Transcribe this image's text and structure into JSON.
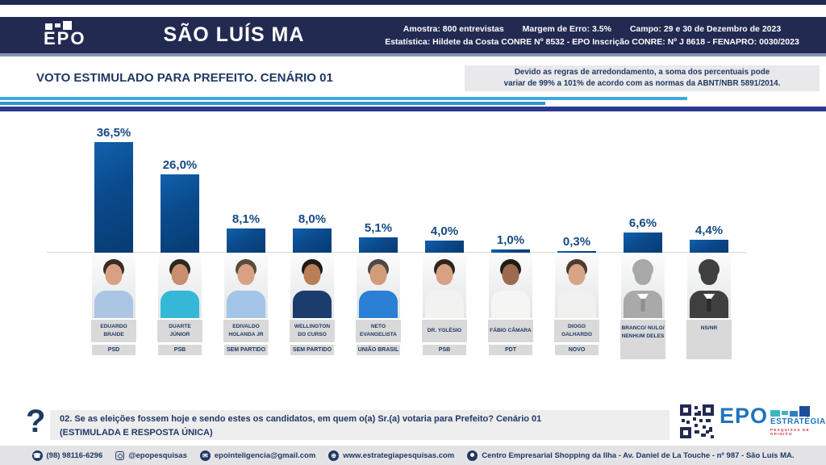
{
  "header": {
    "logo_text": "EPO",
    "title": "SÃO LUÍS MA",
    "info": {
      "amostra": "Amostra: 800 entrevistas",
      "margem": "Margem de Erro: 3.5%",
      "campo": "Campo: 29 e 30 de Dezembro de 2023",
      "line2": "Estatística: Hildete da Costa CONRE Nº 8532  - EPO Inscrição CONRE: Nº J 8618 - FENAPRO: 0030/2023"
    }
  },
  "section": {
    "title": "VOTO ESTIMULADO PARA PREFEITO. CENÁRIO 01",
    "note_line1": "Devido as regras de arredondamento, a soma dos percentuais pode",
    "note_line2": "variar de 99% a 101% de acordo com as normas da ABNT/NBR 5891/2014."
  },
  "chart_data": {
    "type": "bar",
    "title": "VOTO ESTIMULADO PARA PREFEITO. CENÁRIO 01",
    "unit": "%",
    "ylim": [
      0,
      40
    ],
    "grid": false,
    "legend": "none",
    "categories": [
      "EDUARDO BRAIDE",
      "DUARTE JÚNIOR",
      "EDIVALDO HOLANDA JR",
      "WELLINGTON DO CURSO",
      "NETO EVANGELISTA",
      "DR. YGLÉSIO",
      "FÁBIO CÂMARA",
      "DIOGO GALHARDO",
      "BRANCO/ NULO/ NENHUM DELES",
      "NS/NR"
    ],
    "parties": [
      "PSD",
      "PSB",
      "SEM PARTIDO",
      "SEM PARTIDO",
      "UNIÃO BRASIL",
      "PSB",
      "PDT",
      "NOVO",
      "",
      ""
    ],
    "values": [
      36.5,
      26.0,
      8.1,
      8.0,
      5.1,
      4.0,
      1.0,
      0.3,
      6.6,
      4.4
    ],
    "labels": [
      "36,5%",
      "26,0%",
      "8,1%",
      "8,0%",
      "5,1%",
      "4,0%",
      "1,0%",
      "0,3%",
      "6,6%",
      "4,4%"
    ],
    "bar_color": "#0a4a8c"
  },
  "candidates": [
    {
      "name": "EDUARDO BRAIDE",
      "party": "PSD",
      "value": 36.5,
      "pct_label": "36,5%",
      "photo": {
        "hair": "#3a2c24",
        "skin": "#d9a183",
        "shirt": "#aac6e2",
        "silhouette": false
      }
    },
    {
      "name": "DUARTE JÚNIOR",
      "party": "PSB",
      "value": 26.0,
      "pct_label": "26,0%",
      "photo": {
        "hair": "#2e2620",
        "skin": "#c98e6e",
        "shirt": "#35b8d8",
        "silhouette": false
      }
    },
    {
      "name": "EDIVALDO HOLANDA JR",
      "party": "SEM PARTIDO",
      "value": 8.1,
      "pct_label": "8,1%",
      "photo": {
        "hair": "#5a4a3a",
        "skin": "#d8a184",
        "shirt": "#a3c6e8",
        "silhouette": false
      }
    },
    {
      "name": "WELLINGTON DO CURSO",
      "party": "SEM PARTIDO",
      "value": 8.0,
      "pct_label": "8,0%",
      "photo": {
        "hair": "#1f1a16",
        "skin": "#b97f55",
        "shirt": "#1d3c6e",
        "silhouette": false
      }
    },
    {
      "name": "NETO EVANGELISTA",
      "party": "UNIÃO BRASIL",
      "value": 5.1,
      "pct_label": "5,1%",
      "photo": {
        "hair": "#4a4a4a",
        "skin": "#d29b79",
        "shirt": "#2b7fd4",
        "silhouette": false
      }
    },
    {
      "name": "DR. YGLÉSIO",
      "party": "PSB",
      "value": 4.0,
      "pct_label": "4,0%",
      "photo": {
        "hair": "#2c241e",
        "skin": "#d8a183",
        "shirt": "#f2f2f0",
        "silhouette": false
      }
    },
    {
      "name": "FÁBIO CÂMARA",
      "party": "PDT",
      "value": 1.0,
      "pct_label": "1,0%",
      "photo": {
        "hair": "#1f1b18",
        "skin": "#9c6b4e",
        "shirt": "#f5f5f3",
        "silhouette": false
      }
    },
    {
      "name": "DIOGO GALHARDO",
      "party": "NOVO",
      "value": 0.3,
      "pct_label": "0,3%",
      "photo": {
        "hair": "#4e3b2a",
        "skin": "#d8a488",
        "shirt": "#f0f0ee",
        "tie": "#2b5fa8",
        "silhouette": false
      }
    },
    {
      "name": "BRANCO/ NULO/ NENHUM DELES",
      "party": "",
      "value": 6.6,
      "pct_label": "6,6%",
      "photo": {
        "hair": "#a9a9a9",
        "skin": "#a9a9a9",
        "shirt": "#a9a9a9",
        "tie": "#8f8f8f",
        "silhouette": true
      }
    },
    {
      "name": "NS/NR",
      "party": "",
      "value": 4.4,
      "pct_label": "4,4%",
      "photo": {
        "hair": "#3f3f3f",
        "skin": "#3f3f3f",
        "shirt": "#3f3f3f",
        "tie": "#2a2a2a",
        "silhouette": true
      }
    }
  ],
  "question": {
    "mark": "?",
    "line1": "02. Se as eleições fossem hoje e sendo estes os candidatos, em quem o(a) Sr.(a) votaria para Prefeito? Cenário 01",
    "line2": "(ESTIMULADA E RESPOSTA ÚNICA)"
  },
  "brand": {
    "epo": "EPO",
    "estrategia": "ESTRATÉGIA",
    "tagline": "PESQUISAS DE OPINIÃO"
  },
  "footer": {
    "items": [
      {
        "icon": "phone-icon",
        "label": "(98) 98116-6296"
      },
      {
        "icon": "instagram-icon",
        "label": "@epopesquisas"
      },
      {
        "icon": "email-icon",
        "label": "epointeligencia@gmail.com"
      },
      {
        "icon": "globe-icon",
        "label": "www.estrategiapesquisas.com"
      },
      {
        "icon": "location-pin-icon",
        "label": "Centro Empresarial Shopping da Ilha - Av. Daniel de La Touche - nº 987 - São Luís MA."
      }
    ]
  },
  "colors": {
    "header_navy": "#232a52",
    "accent_light_blue": "#3fa9dc",
    "accent_royal_blue": "#2b3990",
    "bar_blue": "#0a4a8c",
    "text_navy": "#203864",
    "box_gray": "#d9d9d9",
    "brand_blue": "#1e73be",
    "brand_teal": "#3fb5c2",
    "brand_red": "#cf2e2e"
  }
}
